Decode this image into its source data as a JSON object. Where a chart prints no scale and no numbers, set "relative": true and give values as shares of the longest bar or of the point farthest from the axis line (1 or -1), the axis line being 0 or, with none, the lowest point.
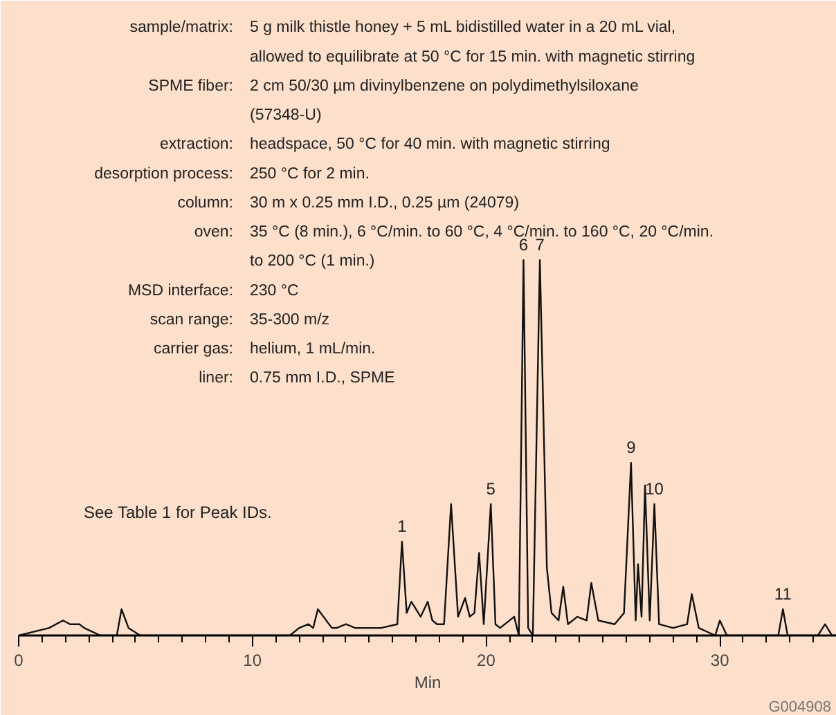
{
  "chart_data": {
    "type": "line",
    "relative": true,
    "xlabel": "Min",
    "xlim": [
      0,
      35
    ],
    "xticks": [
      0,
      {
        "value": 1,
        "label": null
      },
      {
        "value": 2,
        "label": null
      },
      {
        "value": 3,
        "label": null
      },
      {
        "value": 4,
        "label": null
      },
      {
        "value": 5,
        "label": null
      },
      {
        "value": 6,
        "label": null
      },
      {
        "value": 7,
        "label": null
      },
      {
        "value": 8,
        "label": null
      },
      {
        "value": 9,
        "label": null
      },
      10,
      {
        "value": 11,
        "label": null
      },
      {
        "value": 12,
        "label": null
      },
      {
        "value": 13,
        "label": null
      },
      {
        "value": 14,
        "label": null
      },
      {
        "value": 15,
        "label": null
      },
      {
        "value": 16,
        "label": null
      },
      {
        "value": 17,
        "label": null
      },
      {
        "value": 18,
        "label": null
      },
      {
        "value": 19,
        "label": null
      },
      20,
      {
        "value": 21,
        "label": null
      },
      {
        "value": 22,
        "label": null
      },
      {
        "value": 23,
        "label": null
      },
      {
        "value": 24,
        "label": null
      },
      {
        "value": 25,
        "label": null
      },
      {
        "value": 26,
        "label": null
      },
      {
        "value": 27,
        "label": null
      },
      {
        "value": 28,
        "label": null
      },
      {
        "value": 29,
        "label": null
      },
      30,
      {
        "value": 31,
        "label": null
      },
      {
        "value": 32,
        "label": null
      },
      {
        "value": 33,
        "label": null
      },
      {
        "value": 34,
        "label": null
      }
    ],
    "grid": false,
    "tick_labels": "x",
    "series": [
      {
        "color": "#111111",
        "x": [
          0,
          1.3,
          1.9,
          2.2,
          2.6,
          2.8,
          3.5,
          4.2,
          4.4,
          4.7,
          5.2,
          7,
          9,
          10.8,
          11.6,
          12,
          12.4,
          12.6,
          12.8,
          13.4,
          13.6,
          14,
          14.4,
          15.5,
          16.2,
          16.4,
          16.6,
          16.8,
          17.2,
          17.5,
          17.7,
          17.9,
          18.2,
          18.5,
          18.8,
          19.1,
          19.3,
          19.5,
          19.7,
          19.9,
          20.2,
          20.4,
          20.6,
          21.2,
          21.4,
          21.6,
          21.8,
          22.0,
          22.3,
          22.6,
          22.8,
          23.1,
          23.3,
          23.5,
          23.9,
          24.3,
          24.5,
          24.8,
          25.5,
          25.9,
          26.2,
          26.4,
          26.5,
          26.65,
          26.8,
          27.0,
          27.2,
          27.4,
          28.0,
          28.6,
          28.8,
          29.1,
          29.8,
          30.0,
          30.3,
          31.5,
          32.5,
          32.7,
          32.9,
          34.2,
          34.5,
          34.8,
          35
        ],
        "values": [
          0,
          0.02,
          0.04,
          0.03,
          0.03,
          0.02,
          0,
          0,
          0.07,
          0.02,
          0,
          0,
          0,
          0,
          0,
          0.02,
          0.03,
          0.02,
          0.07,
          0.02,
          0.02,
          0.03,
          0.02,
          0.02,
          0.03,
          0.25,
          0.06,
          0.09,
          0.05,
          0.09,
          0.04,
          0.03,
          0.03,
          0.35,
          0.05,
          0.1,
          0.05,
          0.06,
          0.22,
          0.03,
          0.35,
          0.03,
          0.02,
          0.05,
          0,
          1,
          0.02,
          0,
          1,
          0.18,
          0.06,
          0.04,
          0.13,
          0.03,
          0.05,
          0.04,
          0.14,
          0.04,
          0.03,
          0.06,
          0.46,
          0.04,
          0.19,
          0.05,
          0.4,
          0.04,
          0.35,
          0.03,
          0.02,
          0.03,
          0.11,
          0.02,
          0,
          0.04,
          0,
          0,
          0,
          0.07,
          0,
          0,
          0.03,
          0,
          0
        ]
      }
    ],
    "annotations": [
      "sample/matrix: 5 g milk thistle honey + 5 mL bidistilled water in a 20 mL vial,",
      "allowed to equilibrate at 50 °C for 15 min. with magnetic stirring",
      "SPME fiber: 2 cm 50/30 µm divinylbenzene on polydimethylsiloxane",
      "(57348-U)",
      "extraction: headspace, 50 °C for 40 min. with magnetic stirring",
      "desorption process: 250 °C for 2 min.",
      "column: 30 m x 0.25 mm I.D., 0.25 µm (24079)",
      "oven: 35 °C (8 min.), 6 °C/min. to 60 °C, 4 °C/min. to 160 °C, 20 °C/min.",
      "to 200 °C (1 min.)",
      "MSD interface: 230 °C",
      "scan range: 35-300 m/z",
      "carrier gas: helium, 1 mL/min.",
      "liner: 0.75 mm I.D., SPME",
      "See Table 1 for Peak IDs.",
      "G004908",
      {
        "text": "1",
        "x": 16.4,
        "y": 0.25
      },
      {
        "text": "5",
        "x": 20.2,
        "y": 0.35
      },
      {
        "text": "6",
        "x": 21.6,
        "y": 1
      },
      {
        "text": "7",
        "x": 22.3,
        "y": 1
      },
      {
        "text": "9",
        "x": 26.2,
        "y": 0.46
      },
      {
        "text": "10",
        "x": 27.2,
        "y": 0.35
      },
      {
        "text": "11",
        "x": 32.7,
        "y": 0.07
      }
    ]
  }
}
